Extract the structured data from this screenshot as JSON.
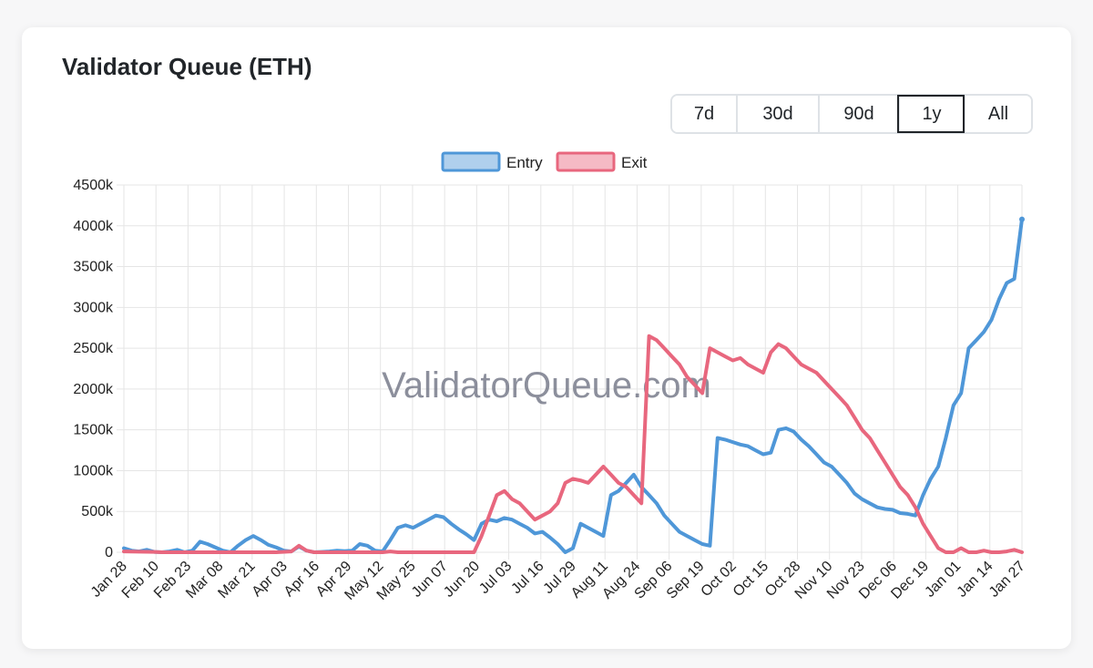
{
  "card": {
    "title": "Validator Queue (ETH)"
  },
  "range_buttons": [
    "7d",
    "30d",
    "90d",
    "1y",
    "All"
  ],
  "active_range": "1y",
  "watermark": "ValidatorQueue.com",
  "colors": {
    "entry": "#4f97d8",
    "exit": "#e8677e",
    "grid": "#e5e5e5",
    "text": "#212529"
  },
  "chart_data": {
    "type": "line",
    "title": "",
    "xlabel": "",
    "ylabel": "",
    "x_ticks": [
      "Jan 28",
      "Feb 10",
      "Feb 23",
      "Mar 08",
      "Mar 21",
      "Apr 03",
      "Apr 16",
      "Apr 29",
      "May 12",
      "May 25",
      "Jun 07",
      "Jun 20",
      "Jul 03",
      "Jul 16",
      "Jul 29",
      "Aug 11",
      "Aug 24",
      "Sep 06",
      "Sep 19",
      "Oct 02",
      "Oct 15",
      "Oct 28",
      "Nov 10",
      "Nov 23",
      "Dec 06",
      "Dec 19",
      "Jan 01",
      "Jan 14",
      "Jan 27"
    ],
    "y_ticks": [
      "0",
      "500k",
      "1000k",
      "1500k",
      "2000k",
      "2500k",
      "3000k",
      "3500k",
      "4000k",
      "4500k"
    ],
    "ylim": [
      0,
      4500
    ],
    "y_unit": "k",
    "legend": {
      "position": "top",
      "entries": [
        "Entry",
        "Exit"
      ]
    },
    "grid": true,
    "series": [
      {
        "name": "Entry",
        "points": [
          [
            0,
            50
          ],
          [
            1,
            20
          ],
          [
            2,
            10
          ],
          [
            3,
            30
          ],
          [
            4,
            5
          ],
          [
            5,
            0
          ],
          [
            6,
            10
          ],
          [
            7,
            30
          ],
          [
            8,
            0
          ],
          [
            9,
            20
          ],
          [
            10,
            130
          ],
          [
            11,
            100
          ],
          [
            12,
            60
          ],
          [
            13,
            20
          ],
          [
            14,
            0
          ],
          [
            15,
            80
          ],
          [
            16,
            150
          ],
          [
            17,
            200
          ],
          [
            18,
            150
          ],
          [
            19,
            90
          ],
          [
            20,
            60
          ],
          [
            21,
            20
          ],
          [
            22,
            10
          ],
          [
            23,
            70
          ],
          [
            24,
            20
          ],
          [
            25,
            0
          ],
          [
            26,
            5
          ],
          [
            27,
            10
          ],
          [
            28,
            20
          ],
          [
            29,
            15
          ],
          [
            30,
            20
          ],
          [
            31,
            100
          ],
          [
            32,
            80
          ],
          [
            33,
            20
          ],
          [
            34,
            10
          ],
          [
            35,
            150
          ],
          [
            36,
            300
          ],
          [
            37,
            330
          ],
          [
            38,
            300
          ],
          [
            39,
            350
          ],
          [
            40,
            400
          ],
          [
            41,
            450
          ],
          [
            42,
            430
          ],
          [
            43,
            350
          ],
          [
            44,
            280
          ],
          [
            45,
            220
          ],
          [
            46,
            150
          ],
          [
            47,
            350
          ],
          [
            48,
            400
          ],
          [
            49,
            380
          ],
          [
            50,
            420
          ],
          [
            51,
            400
          ],
          [
            52,
            350
          ],
          [
            53,
            300
          ],
          [
            54,
            230
          ],
          [
            55,
            250
          ],
          [
            56,
            180
          ],
          [
            57,
            100
          ],
          [
            58,
            0
          ],
          [
            59,
            50
          ],
          [
            60,
            350
          ],
          [
            61,
            300
          ],
          [
            62,
            250
          ],
          [
            63,
            200
          ],
          [
            64,
            700
          ],
          [
            65,
            750
          ],
          [
            66,
            850
          ],
          [
            67,
            950
          ],
          [
            68,
            800
          ],
          [
            69,
            700
          ],
          [
            70,
            600
          ],
          [
            71,
            450
          ],
          [
            72,
            350
          ],
          [
            73,
            250
          ],
          [
            74,
            200
          ],
          [
            75,
            150
          ],
          [
            76,
            100
          ],
          [
            77,
            80
          ],
          [
            78,
            1400
          ],
          [
            79,
            1380
          ],
          [
            80,
            1350
          ],
          [
            81,
            1320
          ],
          [
            82,
            1300
          ],
          [
            83,
            1250
          ],
          [
            84,
            1200
          ],
          [
            85,
            1220
          ],
          [
            86,
            1500
          ],
          [
            87,
            1520
          ],
          [
            88,
            1480
          ],
          [
            89,
            1380
          ],
          [
            90,
            1300
          ],
          [
            91,
            1200
          ],
          [
            92,
            1100
          ],
          [
            93,
            1050
          ],
          [
            94,
            950
          ],
          [
            95,
            850
          ],
          [
            96,
            720
          ],
          [
            97,
            650
          ],
          [
            98,
            600
          ],
          [
            99,
            550
          ],
          [
            100,
            530
          ],
          [
            101,
            520
          ],
          [
            102,
            480
          ],
          [
            103,
            470
          ],
          [
            104,
            450
          ],
          [
            105,
            700
          ],
          [
            106,
            900
          ],
          [
            107,
            1050
          ],
          [
            108,
            1400
          ],
          [
            109,
            1800
          ],
          [
            110,
            1950
          ],
          [
            111,
            2500
          ],
          [
            112,
            2600
          ],
          [
            113,
            2700
          ],
          [
            114,
            2850
          ],
          [
            115,
            3100
          ],
          [
            116,
            3300
          ],
          [
            117,
            3350
          ],
          [
            118,
            4080
          ]
        ]
      },
      {
        "name": "Exit",
        "points": [
          [
            0,
            10
          ],
          [
            4,
            5
          ],
          [
            5,
            0
          ],
          [
            8,
            0
          ],
          [
            11,
            0
          ],
          [
            14,
            0
          ],
          [
            17,
            0
          ],
          [
            20,
            0
          ],
          [
            22,
            10
          ],
          [
            23,
            80
          ],
          [
            24,
            20
          ],
          [
            25,
            0
          ],
          [
            28,
            0
          ],
          [
            31,
            0
          ],
          [
            34,
            0
          ],
          [
            35,
            10
          ],
          [
            36,
            0
          ],
          [
            38,
            0
          ],
          [
            40,
            0
          ],
          [
            42,
            0
          ],
          [
            44,
            0
          ],
          [
            46,
            0
          ],
          [
            47,
            200
          ],
          [
            48,
            450
          ],
          [
            49,
            700
          ],
          [
            50,
            750
          ],
          [
            51,
            650
          ],
          [
            52,
            600
          ],
          [
            53,
            500
          ],
          [
            54,
            400
          ],
          [
            55,
            450
          ],
          [
            56,
            500
          ],
          [
            57,
            600
          ],
          [
            58,
            850
          ],
          [
            59,
            900
          ],
          [
            60,
            880
          ],
          [
            61,
            850
          ],
          [
            62,
            950
          ],
          [
            63,
            1050
          ],
          [
            64,
            950
          ],
          [
            65,
            850
          ],
          [
            66,
            800
          ],
          [
            67,
            700
          ],
          [
            68,
            600
          ],
          [
            69,
            2650
          ],
          [
            70,
            2600
          ],
          [
            71,
            2500
          ],
          [
            72,
            2400
          ],
          [
            73,
            2300
          ],
          [
            74,
            2150
          ],
          [
            75,
            2050
          ],
          [
            76,
            1950
          ],
          [
            77,
            2500
          ],
          [
            78,
            2450
          ],
          [
            79,
            2400
          ],
          [
            80,
            2350
          ],
          [
            81,
            2380
          ],
          [
            82,
            2300
          ],
          [
            83,
            2250
          ],
          [
            84,
            2200
          ],
          [
            85,
            2450
          ],
          [
            86,
            2550
          ],
          [
            87,
            2500
          ],
          [
            88,
            2400
          ],
          [
            89,
            2300
          ],
          [
            90,
            2250
          ],
          [
            91,
            2200
          ],
          [
            92,
            2100
          ],
          [
            93,
            2000
          ],
          [
            94,
            1900
          ],
          [
            95,
            1800
          ],
          [
            96,
            1650
          ],
          [
            97,
            1500
          ],
          [
            98,
            1400
          ],
          [
            99,
            1250
          ],
          [
            100,
            1100
          ],
          [
            101,
            950
          ],
          [
            102,
            800
          ],
          [
            103,
            700
          ],
          [
            104,
            550
          ],
          [
            105,
            350
          ],
          [
            106,
            200
          ],
          [
            107,
            50
          ],
          [
            108,
            0
          ],
          [
            109,
            0
          ],
          [
            110,
            50
          ],
          [
            111,
            0
          ],
          [
            112,
            0
          ],
          [
            113,
            20
          ],
          [
            114,
            0
          ],
          [
            115,
            0
          ],
          [
            116,
            10
          ],
          [
            117,
            30
          ],
          [
            118,
            0
          ]
        ]
      }
    ]
  }
}
